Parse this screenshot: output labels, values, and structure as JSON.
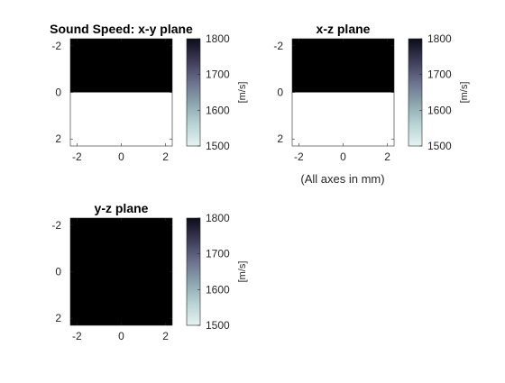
{
  "figure": {
    "footnote": "(All axes in mm)"
  },
  "colors": {
    "high": "#000000",
    "low": "#ffffff",
    "colormap": [
      "#e6f2f2",
      "#b8d4d4",
      "#8aa5ad",
      "#6b6f8c",
      "#3a3a55",
      "#0c0c1a"
    ]
  },
  "chart_data": [
    {
      "id": "xy",
      "type": "heatmap",
      "title": "Sound Speed: x-y plane",
      "xlim": [
        -2.3,
        2.3
      ],
      "ylim": [
        -2.3,
        2.3
      ],
      "y_reversed": true,
      "xticks": [
        -2,
        0,
        2
      ],
      "yticks": [
        -2,
        0,
        2
      ],
      "x_tick_labels": [
        "-2",
        "0",
        "2"
      ],
      "y_tick_labels": [
        "-2",
        "0",
        "2"
      ],
      "regions": [
        {
          "y_range": [
            -2.3,
            0
          ],
          "value": 1800
        },
        {
          "y_range": [
            0,
            2.3
          ],
          "value": 1500
        }
      ],
      "colorbar": {
        "label": "[m/s]",
        "range": [
          1500,
          1800
        ],
        "ticks": [
          1500,
          1600,
          1700,
          1800
        ],
        "tick_labels": [
          "1500",
          "1600",
          "1700",
          "1800"
        ]
      }
    },
    {
      "id": "xz",
      "type": "heatmap",
      "title": "x-z plane",
      "xlim": [
        -2.3,
        2.3
      ],
      "ylim": [
        -2.3,
        2.3
      ],
      "y_reversed": true,
      "xticks": [
        -2,
        0,
        2
      ],
      "yticks": [
        -2,
        0,
        2
      ],
      "x_tick_labels": [
        "-2",
        "0",
        "2"
      ],
      "y_tick_labels": [
        "-2",
        "0",
        "2"
      ],
      "regions": [
        {
          "y_range": [
            -2.3,
            0
          ],
          "value": 1800
        },
        {
          "y_range": [
            0,
            2.3
          ],
          "value": 1500
        }
      ],
      "colorbar": {
        "label": "[m/s]",
        "range": [
          1500,
          1800
        ],
        "ticks": [
          1500,
          1600,
          1700,
          1800
        ],
        "tick_labels": [
          "1500",
          "1600",
          "1700",
          "1800"
        ]
      }
    },
    {
      "id": "yz",
      "type": "heatmap",
      "title": "y-z plane",
      "xlim": [
        -2.3,
        2.3
      ],
      "ylim": [
        -2.3,
        2.3
      ],
      "y_reversed": true,
      "xticks": [
        -2,
        0,
        2
      ],
      "yticks": [
        -2,
        0,
        2
      ],
      "x_tick_labels": [
        "-2",
        "0",
        "2"
      ],
      "y_tick_labels": [
        "-2",
        "0",
        "2"
      ],
      "regions": [
        {
          "y_range": [
            -2.3,
            2.3
          ],
          "value": 1800
        }
      ],
      "colorbar": {
        "label": "[m/s]",
        "range": [
          1500,
          1800
        ],
        "ticks": [
          1500,
          1600,
          1700,
          1800
        ],
        "tick_labels": [
          "1500",
          "1600",
          "1700",
          "1800"
        ]
      }
    }
  ]
}
